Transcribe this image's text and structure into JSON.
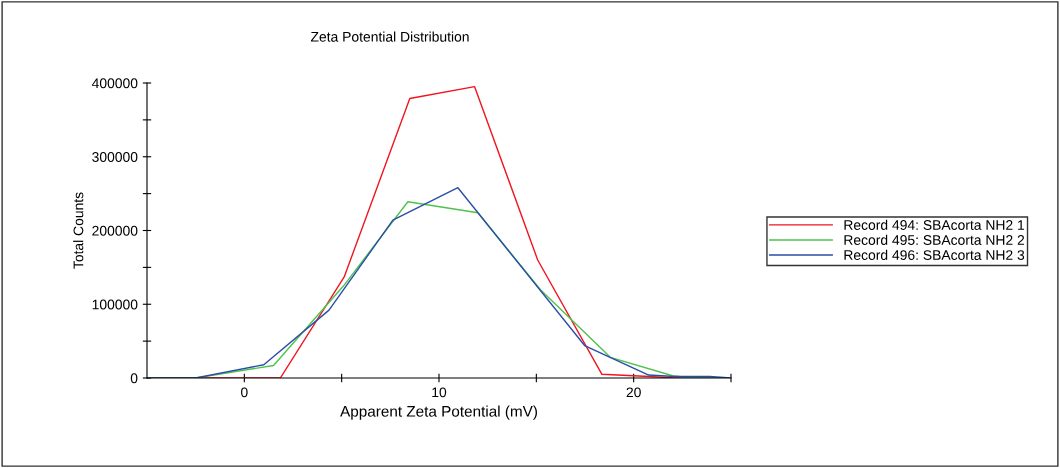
{
  "chart_data": {
    "type": "line",
    "title": "Zeta Potential Distribution",
    "xlabel": "Apparent Zeta Potential (mV)",
    "ylabel": "Total Counts",
    "series": [
      {
        "name": "Record 494: SBAcorta NH2 1",
        "color": "#f0141e",
        "x": [
          -5,
          1.85,
          5.13,
          8.5,
          11.83,
          15.07,
          18.37,
          20.8,
          22.1,
          25
        ],
        "values": [
          0,
          0,
          137000,
          379000,
          395000,
          160000,
          5000,
          2000,
          0,
          0
        ]
      },
      {
        "name": "Record 495: SBAcorta NH2 2",
        "color": "#4ec24e",
        "x": [
          -5,
          -2.5,
          1.5,
          5.1,
          8.4,
          12.0,
          15.2,
          18.8,
          22.0,
          23.0,
          25
        ],
        "values": [
          0,
          0,
          17000,
          125000,
          239000,
          224000,
          120000,
          28000,
          3000,
          0,
          0
        ]
      },
      {
        "name": "Record 496: SBAcorta NH2 3",
        "color": "#2a4ea6",
        "x": [
          -5,
          -2.5,
          1.0,
          4.35,
          7.63,
          10.97,
          17.48,
          20.77,
          22.1,
          23.9,
          25
        ],
        "values": [
          0,
          0,
          18000,
          92000,
          214000,
          258000,
          44000,
          4000,
          2000,
          2000,
          0
        ]
      }
    ],
    "xlim": [
      -5,
      25
    ],
    "xticks": [
      0,
      {
        "value": 5,
        "label": null
      },
      10,
      {
        "value": 15,
        "label": null
      },
      20,
      {
        "value": 25,
        "label": null
      }
    ],
    "ylim": [
      0,
      400000
    ],
    "yticks": [
      0,
      {
        "value": 50000,
        "label": null
      },
      100000,
      {
        "value": 150000,
        "label": null
      },
      200000,
      {
        "value": 250000,
        "label": null
      },
      300000,
      {
        "value": 350000,
        "label": null
      },
      400000
    ],
    "grid": false,
    "legend": "right",
    "marker": "none",
    "line_style": "solid"
  }
}
